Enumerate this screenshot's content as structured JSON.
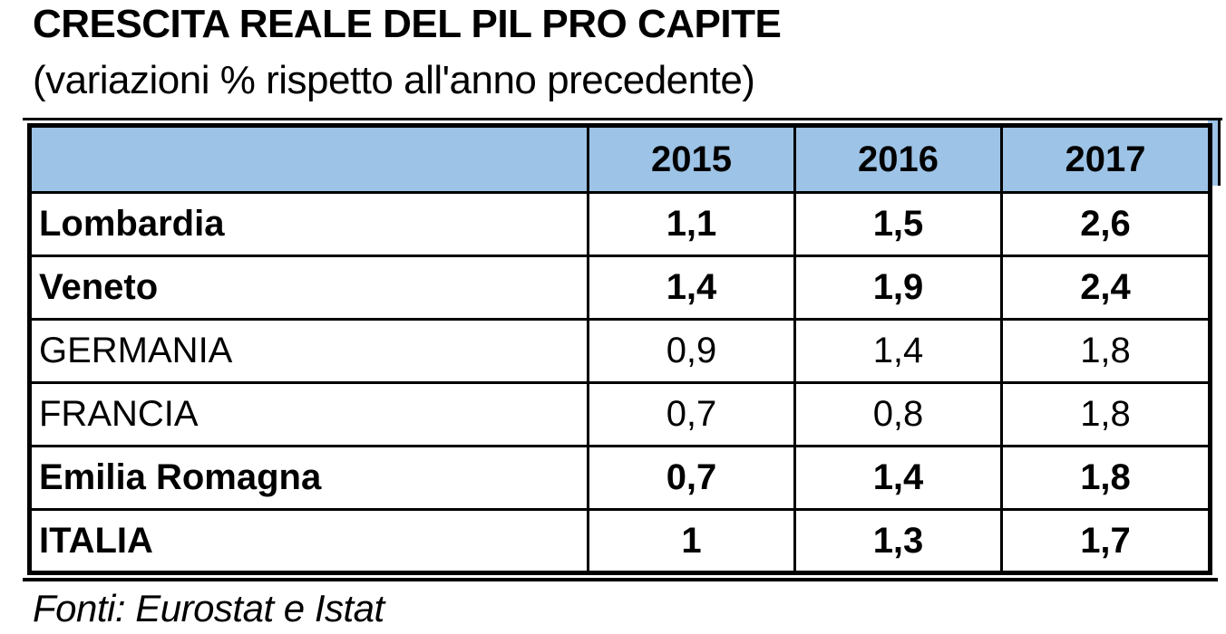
{
  "header": {
    "title": "CRESCITA REALE DEL PIL PRO CAPITE",
    "subtitle": "(variazioni % rispetto all'anno precedente)"
  },
  "table": {
    "corner_label": "",
    "header_bg": "#9DC3E6",
    "columns": [
      "2015",
      "2016",
      "2017"
    ],
    "rows": [
      {
        "label": "Lombardia",
        "bold": true,
        "values": [
          "1,1",
          "1,5",
          "2,6"
        ]
      },
      {
        "label": "Veneto",
        "bold": true,
        "values": [
          "1,4",
          "1,9",
          "2,4"
        ]
      },
      {
        "label": "GERMANIA",
        "bold": false,
        "values": [
          "0,9",
          "1,4",
          "1,8"
        ]
      },
      {
        "label": "FRANCIA",
        "bold": false,
        "values": [
          "0,7",
          "0,8",
          "1,8"
        ]
      },
      {
        "label": "Emilia Romagna",
        "bold": true,
        "values": [
          "0,7",
          "1,4",
          "1,8"
        ]
      },
      {
        "label": "ITALIA",
        "bold": true,
        "values": [
          "1",
          "1,3",
          "1,7"
        ]
      }
    ]
  },
  "footer": {
    "source": "Fonti: Eurostat e Istat"
  },
  "chart_data": {
    "type": "table",
    "title": "CRESCITA REALE DEL PIL PRO CAPITE",
    "subtitle": "(variazioni % rispetto all'anno precedente)",
    "categories": [
      "2015",
      "2016",
      "2017"
    ],
    "series": [
      {
        "name": "Lombardia",
        "values": [
          1.1,
          1.5,
          2.6
        ]
      },
      {
        "name": "Veneto",
        "values": [
          1.4,
          1.9,
          2.4
        ]
      },
      {
        "name": "GERMANIA",
        "values": [
          0.9,
          1.4,
          1.8
        ]
      },
      {
        "name": "FRANCIA",
        "values": [
          0.7,
          0.8,
          1.8
        ]
      },
      {
        "name": "Emilia Romagna",
        "values": [
          0.7,
          1.4,
          1.8
        ]
      },
      {
        "name": "ITALIA",
        "values": [
          1.0,
          1.3,
          1.7
        ]
      }
    ],
    "value_unit": "percent",
    "decimal_separator": ",",
    "source": "Fonti: Eurostat e Istat",
    "emphasized_rows": [
      "Lombardia",
      "Veneto",
      "Emilia Romagna",
      "ITALIA"
    ]
  }
}
